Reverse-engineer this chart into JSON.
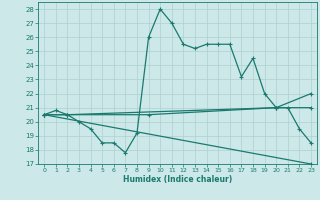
{
  "line1": {
    "x": [
      0,
      1,
      2,
      3,
      4,
      5,
      6,
      7,
      8,
      9,
      10,
      11,
      12,
      13,
      14,
      15,
      16,
      17,
      18,
      19,
      20,
      21,
      22,
      23
    ],
    "y": [
      20.5,
      20.8,
      20.5,
      20.0,
      19.5,
      18.5,
      18.5,
      17.8,
      19.2,
      26.0,
      28.0,
      27.0,
      25.5,
      25.2,
      25.5,
      25.5,
      25.5,
      23.2,
      24.5,
      22.0,
      21.0,
      21.0,
      19.5,
      18.5
    ]
  },
  "line2": {
    "x": [
      0,
      2,
      20,
      23
    ],
    "y": [
      20.5,
      20.5,
      21.0,
      22.0
    ]
  },
  "line3": {
    "x": [
      0,
      2,
      9,
      20,
      23
    ],
    "y": [
      20.5,
      20.5,
      20.5,
      21.0,
      21.0
    ]
  },
  "line4": {
    "x": [
      0,
      23
    ],
    "y": [
      20.5,
      17.0
    ]
  },
  "color": "#1a7a6e",
  "background": "#cce8e8",
  "grid_color": "#aed0d0",
  "xlabel": "Humidex (Indice chaleur)",
  "xlim": [
    -0.5,
    23.5
  ],
  "ylim": [
    17,
    28.5
  ],
  "yticks": [
    17,
    18,
    19,
    20,
    21,
    22,
    23,
    24,
    25,
    26,
    27,
    28
  ],
  "xticks": [
    0,
    1,
    2,
    3,
    4,
    5,
    6,
    7,
    8,
    9,
    10,
    11,
    12,
    13,
    14,
    15,
    16,
    17,
    18,
    19,
    20,
    21,
    22,
    23
  ]
}
